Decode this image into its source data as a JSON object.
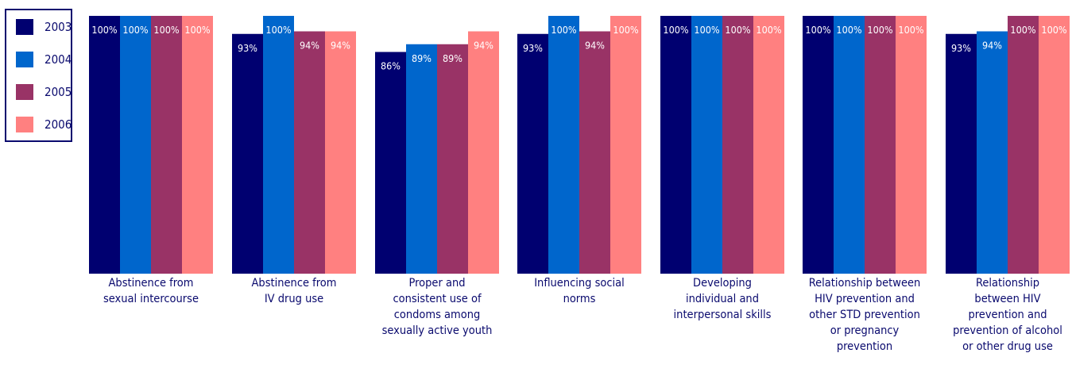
{
  "chart_data": {
    "type": "bar",
    "categories": [
      "Abstinence from\nsexual intercourse",
      "Abstinence from\nIV drug use",
      "Proper and\nconsistent use of\ncondoms among\nsexually active youth",
      "Influencing social\nnorms",
      "Developing\nindividual and\ninterpersonal skills",
      "Relationship between\nHIV prevention and\nother STD prevention\nor pregnancy\nprevention",
      "Relationship\nbetween HIV\nprevention and\nprevention of alcohol\nor other drug use"
    ],
    "series": [
      {
        "name": "2003",
        "color": "#000070",
        "values": [
          100,
          93,
          86,
          93,
          100,
          100,
          93
        ]
      },
      {
        "name": "2004",
        "color": "#0066cc",
        "values": [
          100,
          100,
          89,
          100,
          100,
          100,
          94
        ]
      },
      {
        "name": "2005",
        "color": "#993366",
        "values": [
          100,
          94,
          89,
          94,
          100,
          100,
          100
        ]
      },
      {
        "name": "2006",
        "color": "#ff8080",
        "values": [
          100,
          94,
          94,
          100,
          100,
          100,
          100
        ]
      }
    ],
    "value_suffix": "%",
    "ylim": [
      0,
      100
    ],
    "grid": false,
    "legend_position": "top-left"
  }
}
